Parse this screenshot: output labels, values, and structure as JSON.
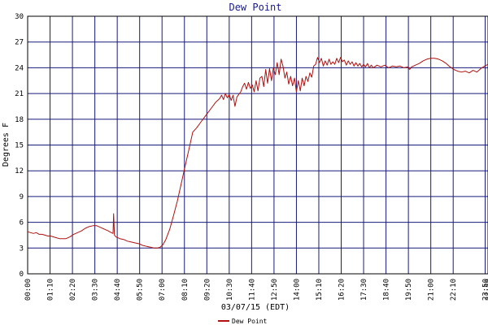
{
  "chart_data": {
    "type": "line",
    "title": "Dew Point",
    "xlabel": "03/07/15 (EDT)",
    "ylabel": "Degrees F",
    "ylim": [
      0,
      30
    ],
    "yticks": [
      0,
      3,
      6,
      9,
      12,
      15,
      18,
      21,
      24,
      27,
      30
    ],
    "xlim": [
      0,
      23.98
    ],
    "xticks": [
      {
        "t": 0.0,
        "label": "00:00"
      },
      {
        "t": 1.1667,
        "label": "01:10"
      },
      {
        "t": 2.3333,
        "label": "02:20"
      },
      {
        "t": 3.5,
        "label": "03:30"
      },
      {
        "t": 4.6667,
        "label": "04:40"
      },
      {
        "t": 5.8333,
        "label": "05:50"
      },
      {
        "t": 7.0,
        "label": "07:00"
      },
      {
        "t": 8.1667,
        "label": "08:10"
      },
      {
        "t": 9.3333,
        "label": "09:20"
      },
      {
        "t": 10.5,
        "label": "10:30"
      },
      {
        "t": 11.6667,
        "label": "11:40"
      },
      {
        "t": 12.8333,
        "label": "12:50"
      },
      {
        "t": 14.0,
        "label": "14:00"
      },
      {
        "t": 15.1667,
        "label": "15:10"
      },
      {
        "t": 16.3333,
        "label": "16:20"
      },
      {
        "t": 17.5,
        "label": "17:30"
      },
      {
        "t": 18.6667,
        "label": "18:40"
      },
      {
        "t": 19.8333,
        "label": "19:50"
      },
      {
        "t": 21.0,
        "label": "21:00"
      },
      {
        "t": 22.1667,
        "label": "22:10"
      },
      {
        "t": 23.8333,
        "label": "23:50"
      },
      {
        "t": 23.9833,
        "label": "23:59"
      }
    ],
    "grid": true,
    "legend_position": "bottom-center",
    "series": [
      {
        "name": "Dew Point",
        "color": "#b01010",
        "points": [
          [
            0.0,
            4.9
          ],
          [
            0.15,
            4.8
          ],
          [
            0.3,
            4.7
          ],
          [
            0.45,
            4.8
          ],
          [
            0.6,
            4.6
          ],
          [
            0.75,
            4.6
          ],
          [
            0.9,
            4.5
          ],
          [
            1.05,
            4.4
          ],
          [
            1.2,
            4.4
          ],
          [
            1.35,
            4.3
          ],
          [
            1.5,
            4.2
          ],
          [
            1.65,
            4.1
          ],
          [
            1.8,
            4.1
          ],
          [
            2.0,
            4.1
          ],
          [
            2.2,
            4.3
          ],
          [
            2.4,
            4.6
          ],
          [
            2.6,
            4.8
          ],
          [
            2.8,
            5.0
          ],
          [
            3.0,
            5.3
          ],
          [
            3.2,
            5.5
          ],
          [
            3.4,
            5.6
          ],
          [
            3.6,
            5.6
          ],
          [
            3.8,
            5.4
          ],
          [
            4.0,
            5.2
          ],
          [
            4.2,
            5.0
          ],
          [
            4.35,
            4.8
          ],
          [
            4.45,
            4.7
          ],
          [
            4.48,
            7.0
          ],
          [
            4.52,
            4.5
          ],
          [
            4.6,
            4.3
          ],
          [
            4.8,
            4.1
          ],
          [
            5.0,
            4.0
          ],
          [
            5.2,
            3.8
          ],
          [
            5.4,
            3.7
          ],
          [
            5.6,
            3.6
          ],
          [
            5.8,
            3.5
          ],
          [
            6.0,
            3.3
          ],
          [
            6.2,
            3.2
          ],
          [
            6.4,
            3.1
          ],
          [
            6.6,
            3.0
          ],
          [
            6.75,
            3.0
          ],
          [
            6.9,
            3.1
          ],
          [
            7.05,
            3.4
          ],
          [
            7.2,
            4.0
          ],
          [
            7.4,
            5.2
          ],
          [
            7.6,
            6.8
          ],
          [
            7.8,
            8.5
          ],
          [
            8.0,
            10.5
          ],
          [
            8.2,
            12.5
          ],
          [
            8.4,
            14.5
          ],
          [
            8.6,
            16.5
          ],
          [
            8.8,
            17.0
          ],
          [
            9.0,
            17.6
          ],
          [
            9.2,
            18.2
          ],
          [
            9.4,
            18.8
          ],
          [
            9.6,
            19.4
          ],
          [
            9.8,
            20.0
          ],
          [
            10.0,
            20.4
          ],
          [
            10.1,
            20.8
          ],
          [
            10.2,
            20.3
          ],
          [
            10.3,
            21.0
          ],
          [
            10.4,
            20.5
          ],
          [
            10.5,
            20.9
          ],
          [
            10.6,
            20.2
          ],
          [
            10.7,
            20.8
          ],
          [
            10.8,
            19.5
          ],
          [
            10.9,
            20.6
          ],
          [
            11.0,
            20.9
          ],
          [
            11.1,
            21.2
          ],
          [
            11.2,
            21.8
          ],
          [
            11.3,
            22.2
          ],
          [
            11.4,
            21.5
          ],
          [
            11.5,
            22.3
          ],
          [
            11.6,
            21.6
          ],
          [
            11.7,
            22.0
          ],
          [
            11.8,
            21.2
          ],
          [
            11.9,
            22.5
          ],
          [
            12.0,
            21.3
          ],
          [
            12.1,
            22.8
          ],
          [
            12.2,
            23.0
          ],
          [
            12.3,
            21.8
          ],
          [
            12.4,
            23.8
          ],
          [
            12.5,
            22.2
          ],
          [
            12.6,
            23.9
          ],
          [
            12.7,
            22.5
          ],
          [
            12.8,
            24.0
          ],
          [
            12.9,
            23.2
          ],
          [
            13.0,
            24.6
          ],
          [
            13.1,
            23.2
          ],
          [
            13.2,
            25.0
          ],
          [
            13.3,
            24.2
          ],
          [
            13.4,
            22.8
          ],
          [
            13.5,
            23.5
          ],
          [
            13.6,
            22.1
          ],
          [
            13.7,
            23.0
          ],
          [
            13.8,
            21.9
          ],
          [
            13.9,
            22.8
          ],
          [
            14.0,
            21.2
          ],
          [
            14.1,
            22.5
          ],
          [
            14.2,
            21.3
          ],
          [
            14.3,
            22.8
          ],
          [
            14.4,
            21.9
          ],
          [
            14.5,
            23.0
          ],
          [
            14.6,
            22.4
          ],
          [
            14.7,
            23.4
          ],
          [
            14.8,
            22.9
          ],
          [
            14.9,
            24.2
          ],
          [
            15.0,
            24.4
          ],
          [
            15.1,
            25.2
          ],
          [
            15.2,
            24.6
          ],
          [
            15.3,
            25.1
          ],
          [
            15.4,
            24.2
          ],
          [
            15.5,
            24.8
          ],
          [
            15.6,
            24.3
          ],
          [
            15.7,
            25.0
          ],
          [
            15.8,
            24.4
          ],
          [
            15.9,
            24.7
          ],
          [
            16.0,
            24.4
          ],
          [
            16.1,
            25.1
          ],
          [
            16.2,
            24.6
          ],
          [
            16.3,
            25.2
          ],
          [
            16.4,
            24.7
          ],
          [
            16.5,
            24.9
          ],
          [
            16.6,
            24.3
          ],
          [
            16.7,
            24.8
          ],
          [
            16.8,
            24.4
          ],
          [
            16.9,
            24.7
          ],
          [
            17.0,
            24.2
          ],
          [
            17.1,
            24.6
          ],
          [
            17.2,
            24.2
          ],
          [
            17.3,
            24.5
          ],
          [
            17.4,
            24.1
          ],
          [
            17.5,
            24.4
          ],
          [
            17.6,
            24.1
          ],
          [
            17.7,
            24.5
          ],
          [
            17.8,
            24.0
          ],
          [
            17.9,
            24.3
          ],
          [
            18.0,
            24.0
          ],
          [
            18.2,
            24.3
          ],
          [
            18.4,
            24.1
          ],
          [
            18.6,
            24.3
          ],
          [
            18.8,
            24.0
          ],
          [
            19.0,
            24.2
          ],
          [
            19.2,
            24.1
          ],
          [
            19.4,
            24.2
          ],
          [
            19.6,
            24.0
          ],
          [
            19.8,
            24.1
          ],
          [
            19.9,
            23.8
          ],
          [
            20.0,
            24.1
          ],
          [
            20.2,
            24.3
          ],
          [
            20.4,
            24.5
          ],
          [
            20.6,
            24.8
          ],
          [
            20.8,
            25.0
          ],
          [
            21.0,
            25.1
          ],
          [
            21.2,
            25.1
          ],
          [
            21.4,
            25.0
          ],
          [
            21.6,
            24.8
          ],
          [
            21.8,
            24.5
          ],
          [
            22.0,
            24.1
          ],
          [
            22.2,
            23.8
          ],
          [
            22.4,
            23.6
          ],
          [
            22.6,
            23.5
          ],
          [
            22.8,
            23.6
          ],
          [
            23.0,
            23.4
          ],
          [
            23.2,
            23.7
          ],
          [
            23.4,
            23.5
          ],
          [
            23.6,
            23.9
          ],
          [
            23.8,
            24.2
          ],
          [
            23.98,
            24.4
          ]
        ]
      }
    ]
  }
}
